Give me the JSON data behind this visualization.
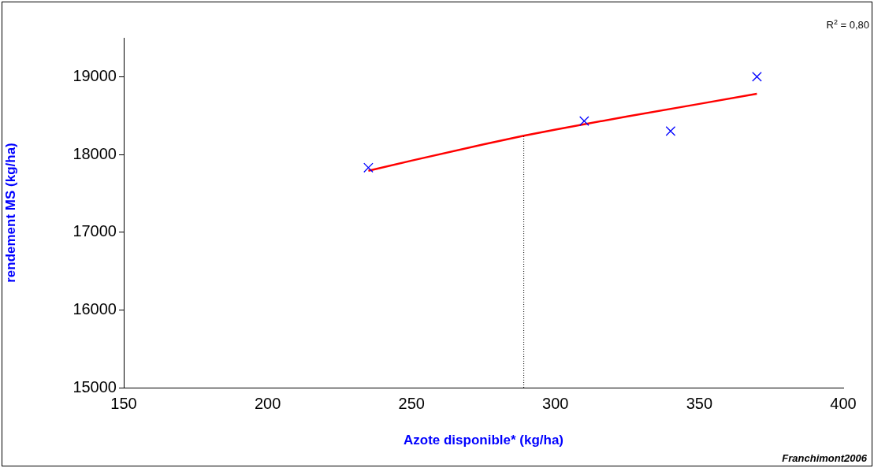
{
  "chart_data": {
    "type": "scatter",
    "xlabel": "Azote disponible* (kg/ha)",
    "ylabel": "rendement MS (kg/ha)",
    "xlim": [
      150,
      400
    ],
    "xticks": [
      150,
      200,
      250,
      300,
      350,
      400
    ],
    "ylim": [
      15000,
      19500
    ],
    "yticks": [
      15000,
      16000,
      17000,
      18000,
      19000
    ],
    "grid": false,
    "legend": false,
    "marker": "cross",
    "series": [
      {
        "color": "#0000ff",
        "x": [
          235,
          310,
          340,
          370
        ],
        "values": [
          17830,
          18430,
          18300,
          19000
        ]
      },
      {
        "type": "line",
        "color": "#ff0000",
        "marker": "none",
        "line_style": "solid",
        "x": [
          235,
          250,
          275,
          289,
          300,
          325,
          350,
          370
        ],
        "values": [
          17790,
          17920,
          18130,
          18240,
          18320,
          18490,
          18650,
          18780
        ]
      }
    ],
    "ref_lines": [
      {
        "axis": "x",
        "value": 289,
        "color": "#000000",
        "line_style": "dotted"
      }
    ],
    "annotations": [
      "R$^{2}$ = 0,80",
      "Franchimont2006"
    ]
  }
}
